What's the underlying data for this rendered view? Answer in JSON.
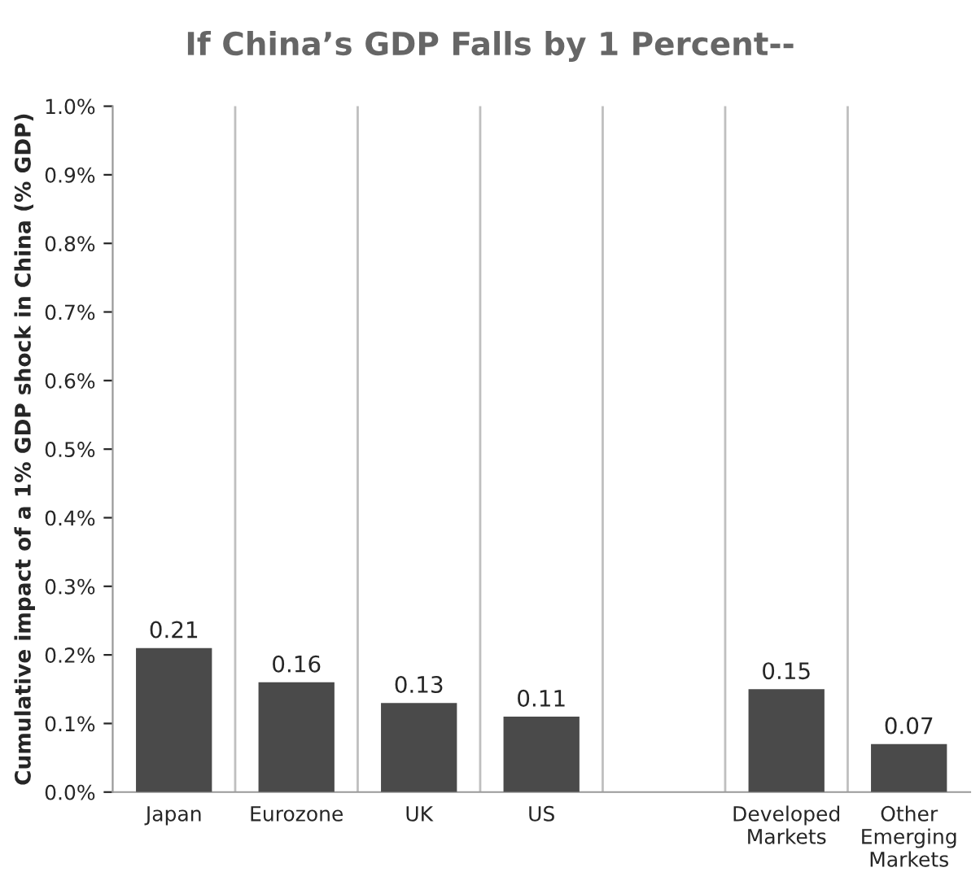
{
  "chart_data": {
    "type": "bar",
    "title": "If China’s GDP Falls by 1 Percent--",
    "ylabel": "Cumulative impact of a 1% GDP shock in China (% GDP)",
    "categories": [
      "Japan",
      "Eurozone",
      "UK",
      "US",
      null,
      "Developed\nMarkets",
      "Other\nEmerging\nMarkets"
    ],
    "values": [
      0.21,
      0.16,
      0.13,
      0.11,
      null,
      0.15,
      0.07
    ],
    "color": "#4a4a4a",
    "ylim": [
      0,
      1
    ],
    "yticks": [
      {
        "value": 0,
        "label": "0.0%"
      },
      {
        "value": 0.1,
        "label": "0.1%"
      },
      {
        "value": 0.2,
        "label": "0.2%"
      },
      {
        "value": 0.3,
        "label": "0.3%"
      },
      {
        "value": 0.4,
        "label": "0.4%"
      },
      {
        "value": 0.5,
        "label": "0.5%"
      },
      {
        "value": 0.6,
        "label": "0.6%"
      },
      {
        "value": 0.7,
        "label": "0.7%"
      },
      {
        "value": 0.8,
        "label": "0.8%"
      },
      {
        "value": 0.9,
        "label": "0.9%"
      },
      {
        "value": 1,
        "label": "1.0%"
      }
    ],
    "data_labels": true,
    "grid": "x"
  }
}
